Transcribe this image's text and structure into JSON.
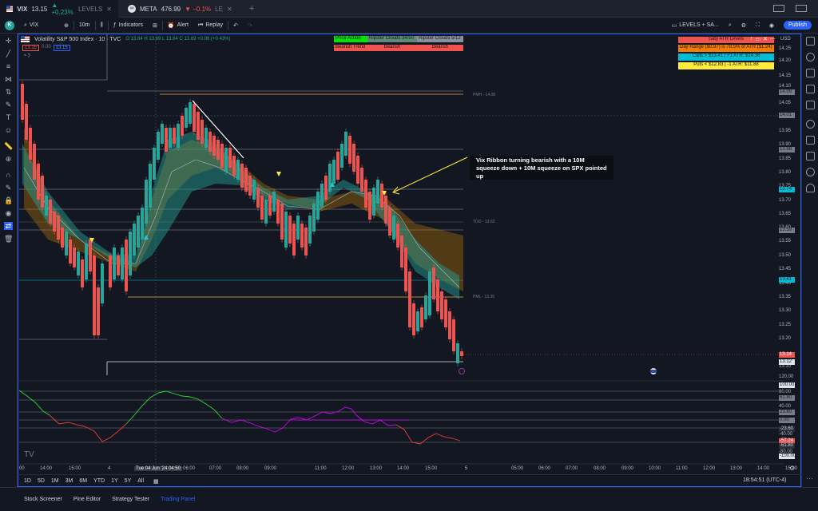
{
  "tabs": [
    {
      "symbol": "VIX",
      "price": "13.15",
      "change": "▲ +0.23%",
      "layout": "LEVELS"
    },
    {
      "symbol": "META",
      "price": "476.99",
      "change": "▼ −0.1%",
      "layout": "LE"
    }
  ],
  "new_tab": "+",
  "toolbar": {
    "avatar": "K",
    "search": "VIX",
    "interval": "10m",
    "indicators": "Indicators",
    "alert": "Alert",
    "replay": "Replay",
    "layout_name": "LEVELS + SA...",
    "publish": "Publish"
  },
  "legend": {
    "title": "Volatility S&P 500 Index · 10 · TVC",
    "ohlc": "O 13.64 H 13.69 L 13.64 C 13.69 +0.06 (+0.43%)",
    "sell": "13.15",
    "spread": "0.00",
    "buy": "13.15",
    "collapse": "^ 7"
  },
  "table1": {
    "headers": [
      "Price Action",
      "Ripster Clouds 34/50",
      "Ripster Clouds 5/12"
    ],
    "values": [
      "Bearish Trend",
      "Bearish",
      "Bearish"
    ]
  },
  "atr_table": {
    "title": "Saty ATR Levels",
    "rows": [
      "Day Range ($0.97) is 78.5% of ATR ($1.24)",
      "Calls > $13.41 | +1 ATR: $14.36",
      "Puts < $12.83 | -1 ATR: $11.88"
    ],
    "colors": [
      "#f57c00",
      "#00bcd4",
      "#ffeb3b"
    ]
  },
  "currency": "USD",
  "price_axis": [
    "14.25",
    "14.20",
    "14.15",
    "14.10",
    "14.05",
    "13.95",
    "13.90",
    "13.85",
    "13.80",
    "13.75",
    "13.70",
    "13.65",
    "13.60",
    "13.55",
    "13.50",
    "13.45",
    "13.40",
    "13.35",
    "13.30",
    "13.25",
    "13.20",
    "13.10"
  ],
  "price_labels": [
    "14.09",
    "14.01",
    "13.88",
    "13.74",
    "13.59",
    "13.41",
    "13.14",
    "13.12"
  ],
  "level_labels": {
    "pmh": "PMH - 14.08",
    "tdo": "TDO - 13.62",
    "pml": "PML - 13.35"
  },
  "annotation": "Vix Ribbon turning bearish with a 10M squeeze down + 10M squeeze on SPX pointed up",
  "osc_axis": [
    "120.00",
    "100.00",
    "80.00",
    "61.80",
    "40.00",
    "23.60",
    "0.00",
    "-23.60",
    "-40.00",
    "-57.24",
    "-61.80",
    "-80.00",
    "-100.00"
  ],
  "time_axis": [
    "00",
    "14:00",
    "15:00",
    "4",
    "Tue 04 Jun '24  04:50",
    "06:00",
    "07:00",
    "08:00",
    "09:00",
    "11:00",
    "12:00",
    "13:00",
    "14:00",
    "15:00",
    "5",
    "05:00",
    "06:00",
    "07:00",
    "08:00",
    "09:00",
    "10:00",
    "11:00",
    "12:00",
    "13:00",
    "14:00",
    "15:00"
  ],
  "ranges": [
    "1D",
    "5D",
    "1M",
    "3M",
    "6M",
    "YTD",
    "1Y",
    "5Y",
    "All"
  ],
  "clock": "18:54:51 (UTC-4)",
  "panel_tabs": [
    "Stock Screener",
    "Pine Editor",
    "Strategy Tester",
    "Trading Panel"
  ]
}
